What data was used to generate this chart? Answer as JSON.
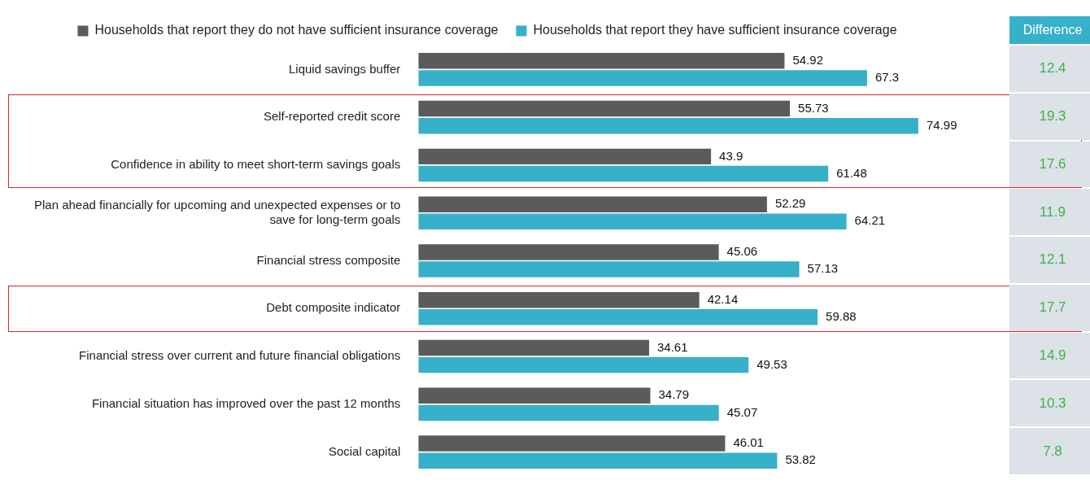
{
  "chart_data": [
    {
      "type": "bar",
      "orientation": "horizontal",
      "legend": "top",
      "data_labels": true,
      "grid": false,
      "categories": [
        "Liquid savings buffer",
        "Self-reported credit score",
        "Confidence in ability to meet short-term savings goals",
        "Plan ahead financially for upcoming and unexpected expenses or to save for long-term goals",
        "Financial stress composite",
        "Debt composite indicator",
        "Financial stress over current and future financial obligations",
        "Financial situation has improved over the past 12 months",
        "Social capital"
      ],
      "series": [
        {
          "name": "Households that report they do not have sufficient insurance coverage",
          "color": "#5b5b5b",
          "values": [
            54.92,
            55.73,
            43.9,
            52.29,
            45.06,
            42.14,
            34.61,
            34.79,
            46.01
          ]
        },
        {
          "name": "Households that report they have sufficient insurance coverage",
          "color": "#37b0c9",
          "values": [
            67.3,
            74.99,
            61.48,
            64.21,
            57.13,
            59.88,
            49.53,
            45.07,
            53.82
          ]
        }
      ]
    },
    {
      "type": "other",
      "title": "Difference",
      "annotations": [
        "12.4",
        "19.3",
        "17.6",
        "11.9",
        "12.1",
        "17.7",
        "14.9",
        "10.3",
        "7.8"
      ]
    }
  ]
}
